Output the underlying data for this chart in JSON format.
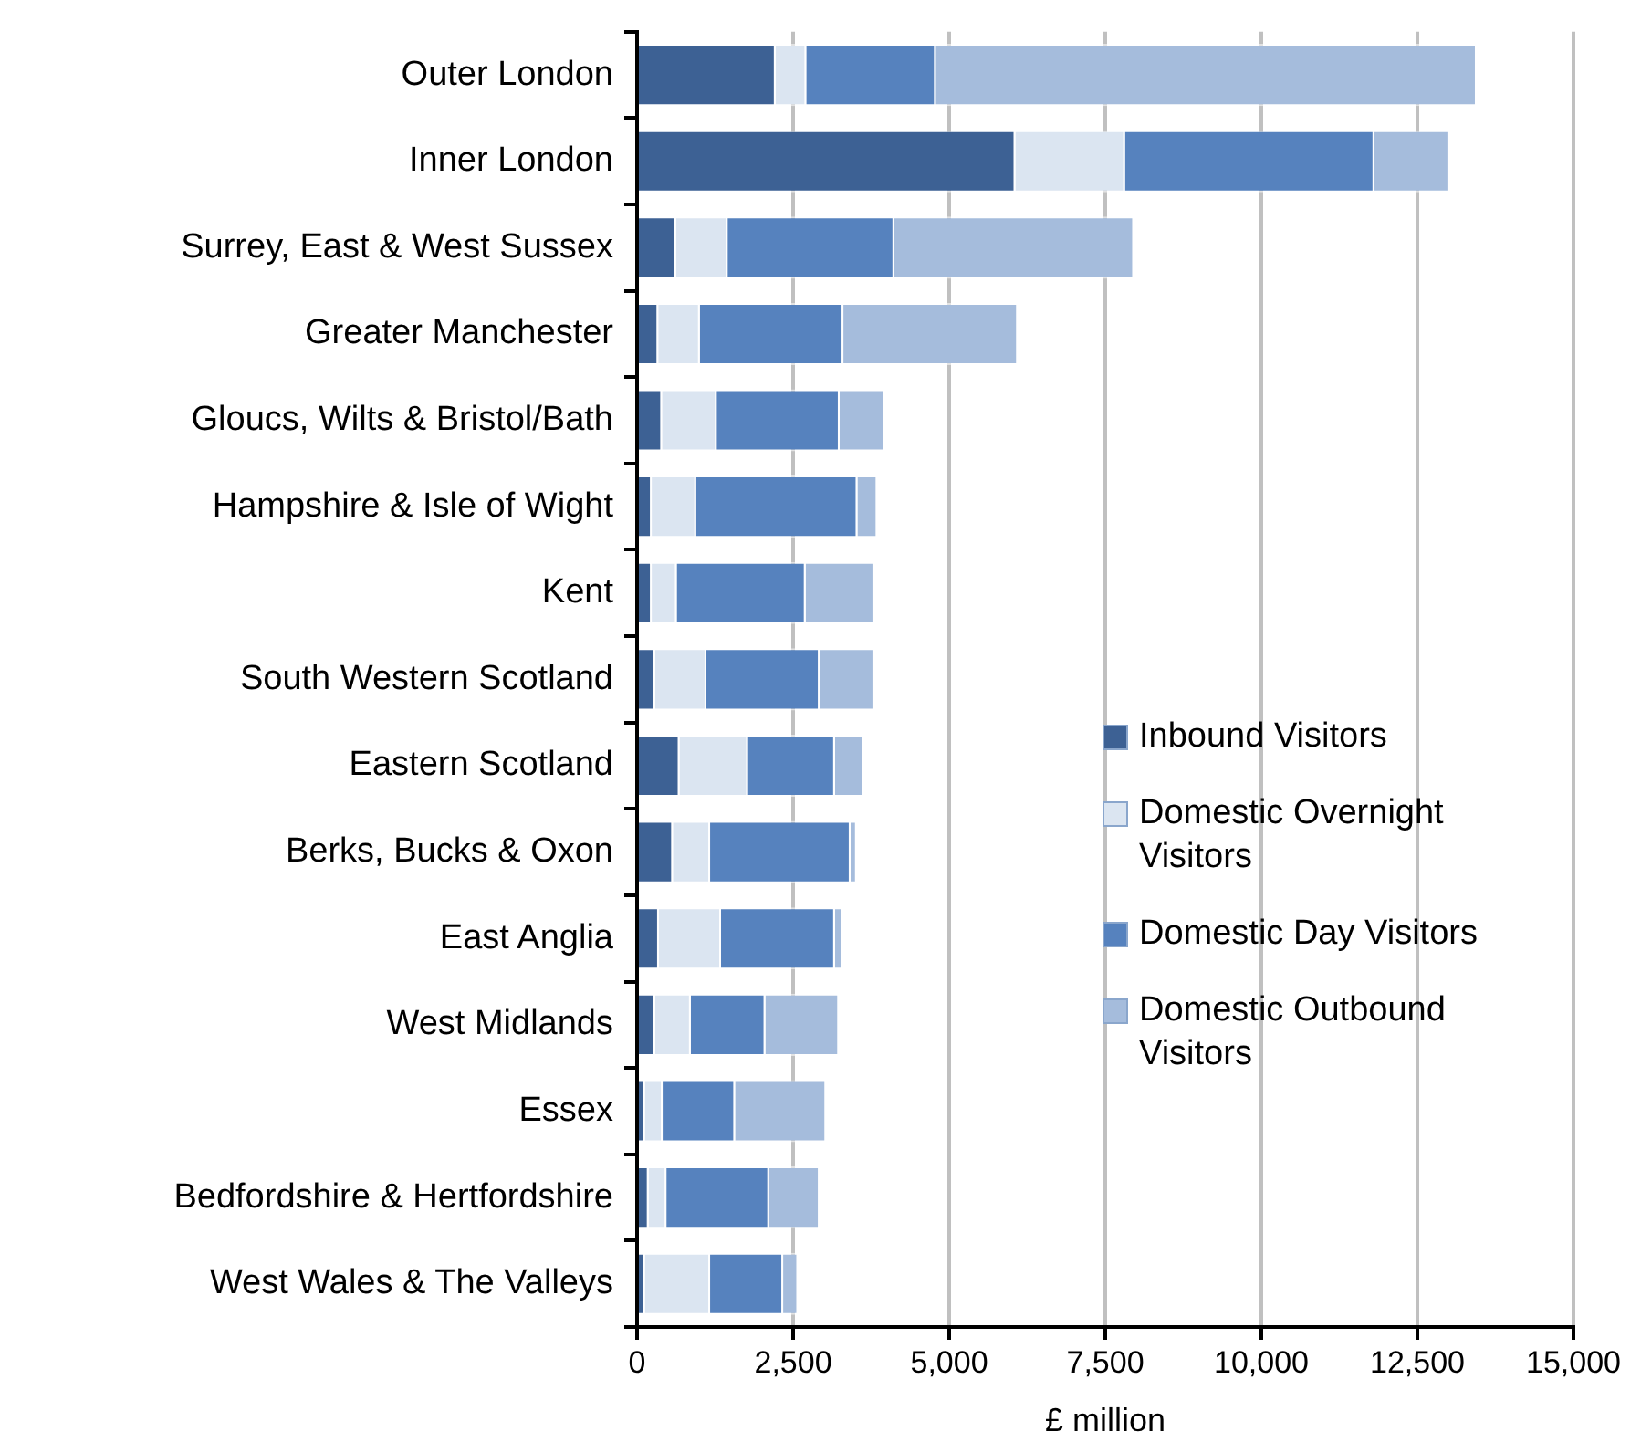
{
  "chart_data": {
    "type": "bar",
    "orientation": "horizontal",
    "stacked": true,
    "xlabel": "£ million",
    "categories": [
      "Outer London",
      "Inner London",
      "Surrey, East & West Sussex",
      "Greater Manchester",
      "Gloucs, Wilts & Bristol/Bath",
      "Hampshire & Isle of Wight",
      "Kent",
      "South Western Scotland",
      "Eastern Scotland",
      "Berks, Bucks & Oxon",
      "East Anglia",
      "West Midlands",
      "Essex",
      "Bedfordshire & Hertfordshire",
      "West Wales & The Valleys"
    ],
    "series": [
      {
        "name": "Inbound Visitors",
        "color": "#3d6194",
        "values": [
          2220,
          6060,
          625,
          340,
          400,
          235,
          235,
          290,
          680,
          575,
          350,
          290,
          125,
          185,
          125
        ]
      },
      {
        "name": "Domestic Overnight Visitors",
        "color": "#dbe5f1",
        "values": [
          490,
          1755,
          825,
          665,
          875,
          710,
          400,
          820,
          1095,
          595,
          995,
          570,
          285,
          285,
          1045
        ]
      },
      {
        "name": "Domestic Day Visitors",
        "color": "#5682be",
        "values": [
          2075,
          3995,
          2670,
          2300,
          1970,
          2585,
          2065,
          1815,
          1395,
          2250,
          1825,
          1195,
          1160,
          1645,
          1170
        ]
      },
      {
        "name": "Domestic Outbound Visitors",
        "color": "#a5bcdc",
        "values": [
          8665,
          1200,
          3840,
          2795,
          720,
          320,
          1100,
          875,
          465,
          100,
          125,
          1180,
          1460,
          810,
          240
        ]
      }
    ],
    "xlim": [
      0,
      15000
    ],
    "xticks": [
      {
        "value": 0,
        "label": "0"
      },
      {
        "value": 2500,
        "label": "2,500"
      },
      {
        "value": 5000,
        "label": "5,000"
      },
      {
        "value": 7500,
        "label": "7,500"
      },
      {
        "value": 10000,
        "label": "10,000"
      },
      {
        "value": 12500,
        "label": "12,500"
      },
      {
        "value": 15000,
        "label": "15,000"
      }
    ],
    "grid": "x",
    "legend": "right"
  }
}
